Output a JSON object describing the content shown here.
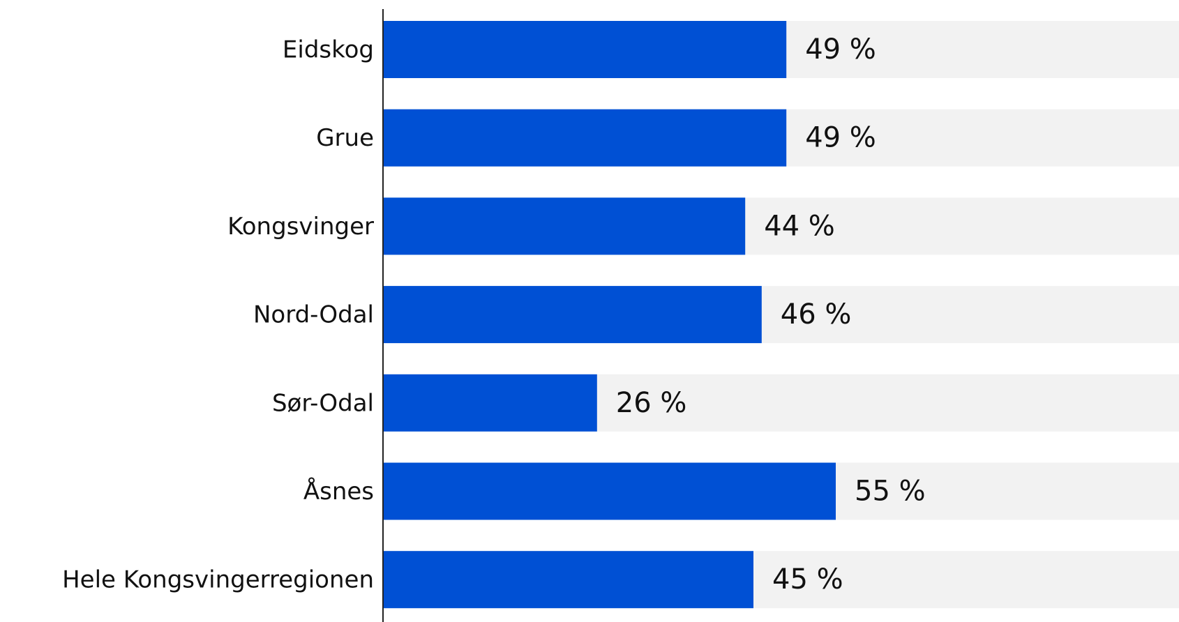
{
  "chart_data": {
    "type": "hbar",
    "categories": [
      "Eidskog",
      "Grue",
      "Kongsvinger",
      "Nord-Odal",
      "Sør-Odal",
      "Åsnes",
      "Hele Kongsvingerregionen"
    ],
    "values": [
      49,
      49,
      44,
      46,
      26,
      55,
      45
    ],
    "value_labels": [
      "49 %",
      "49 %",
      "44 %",
      "46 %",
      "26 %",
      "55 %",
      "45 %"
    ],
    "color": "#0050d4",
    "track_color": "#f2f2f2",
    "xlim": [
      0,
      100
    ]
  }
}
